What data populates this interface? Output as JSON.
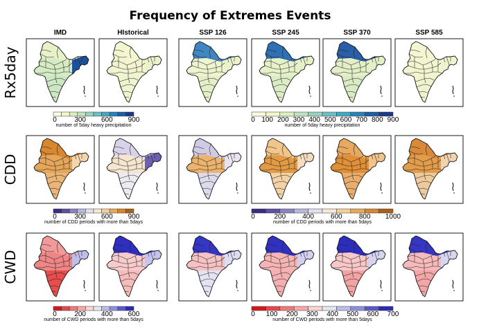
{
  "title": "Frequency of Extremes Events",
  "columns": [
    "IMD",
    "HIstorical",
    "SSP 126",
    "SSP 245",
    "SSP 370",
    "SSP 585"
  ],
  "rows": [
    {
      "label": "Rx5day",
      "colorbars": [
        {
          "ticks": [
            "0",
            "300",
            "600",
            "900"
          ],
          "caption": "number of 5day heavy precipitation",
          "palette": "blues"
        },
        {
          "ticks": [
            "0",
            "100",
            "200",
            "300",
            "400",
            "500",
            "600",
            "700",
            "800",
            "900"
          ],
          "caption": "number of 5day heavy precipitation",
          "palette": "blues"
        }
      ]
    },
    {
      "label": "CDD",
      "colorbars": [
        {
          "ticks": [
            "0",
            "300",
            "600",
            "900"
          ],
          "caption": "number of CDD periods with more than 5days",
          "palette": "purple_orange"
        },
        {
          "ticks": [
            "0",
            "200",
            "400",
            "600",
            "800",
            "1000"
          ],
          "caption": "number of CDD periods with more than 5days",
          "palette": "purple_orange"
        }
      ]
    },
    {
      "label": "CWD",
      "colorbars": [
        {
          "ticks": [
            "0",
            "200",
            "400",
            "600"
          ],
          "caption": "number of CWD periods with more than 5days",
          "palette": "red_blue"
        },
        {
          "ticks": [
            "0",
            "100",
            "200",
            "300",
            "400",
            "500",
            "600",
            "700"
          ],
          "caption": "number of CWD periods with more than 5days",
          "palette": "red_blue"
        }
      ]
    }
  ],
  "palettes": {
    "blues": [
      "#fbfbe0",
      "#f1f7c9",
      "#dcefc0",
      "#bfe3be",
      "#97d2c0",
      "#6cc0c4",
      "#44a7c4",
      "#2a83b5",
      "#1e5ea3",
      "#1b3a87"
    ],
    "purple_orange": [
      "#3b2a86",
      "#5d50a3",
      "#8a84c0",
      "#b9b7dc",
      "#e0e0ef",
      "#f6e8d5",
      "#f3cf9c",
      "#e8a95a",
      "#d6862c",
      "#a8611b"
    ],
    "red_blue": [
      "#d7191c",
      "#e5474a",
      "#f0797a",
      "#f7a8a8",
      "#fbd6d6",
      "#e6e6f4",
      "#bdbdea",
      "#8f8fdc",
      "#5a5acc",
      "#2b2bb8"
    ]
  },
  "map_fills": {
    "Rx5day": [
      {
        "n": "#e8f2c8",
        "c": "#d4ebc4",
        "s": "#cde7c4",
        "e": "#1e4f9c"
      },
      {
        "n": "#f4f6d2",
        "c": "#f2f5cf",
        "s": "#eef4cd",
        "e": "#eaf2cb"
      },
      {
        "n": "#3f86c2",
        "c": "#eef4ce",
        "s": "#e4efc8",
        "e": "#eaf2cb"
      },
      {
        "n": "#2f6fb4",
        "c": "#e6f0c9",
        "s": "#dcedc6",
        "e": "#e6f0c9"
      },
      {
        "n": "#2a5ea8",
        "c": "#e4efc8",
        "s": "#d8ebc4",
        "e": "#e4efc8"
      },
      {
        "n": "#f4f6d2",
        "c": "#f2f5cf",
        "s": "#f0f4ce",
        "e": "#eef4cd"
      }
    ],
    "CDD": [
      {
        "n": "#d8872f",
        "c": "#e6a65a",
        "s": "#eab577",
        "e": "#f3d6ac"
      },
      {
        "n": "#d9d3ea",
        "c": "#f6e6cf",
        "s": "#eeeaf2",
        "e": "#6a5fb0"
      },
      {
        "n": "#cfcbe4",
        "c": "#ebb36d",
        "s": "#dcdbee",
        "e": "#e9e3ef"
      },
      {
        "n": "#f1c68b",
        "c": "#e39a45",
        "s": "#f3d3a5",
        "e": "#f3dcc0"
      },
      {
        "n": "#e7a860",
        "c": "#e08f37",
        "s": "#e9ad6c",
        "e": "#efc48d"
      },
      {
        "n": "#d9893a",
        "c": "#e39c4a",
        "s": "#eecb9e",
        "e": "#f1d4ae"
      }
    ],
    "CWD": [
      {
        "n": "#f29a9a",
        "c": "#ef8585",
        "s": "#e64e4e",
        "e": "#bebeea"
      },
      {
        "n": "#2f2fbf",
        "c": "#f8cccc",
        "s": "#f6bcbc",
        "e": "#c4c4ee"
      },
      {
        "n": "#3636c4",
        "c": "#f7c2c2",
        "s": "#e3e3f4",
        "e": "#dcdcf2"
      },
      {
        "n": "#3131c0",
        "c": "#f5b5b5",
        "s": "#f4b0b0",
        "e": "#d2d2f0"
      },
      {
        "n": "#2d2dbd",
        "c": "#f8c8c8",
        "s": "#f2a3a3",
        "e": "#d5d5f1"
      },
      {
        "n": "#3636c4",
        "c": "#f6baba",
        "s": "#f3a6a6",
        "e": "#d6d6f1"
      }
    ]
  }
}
